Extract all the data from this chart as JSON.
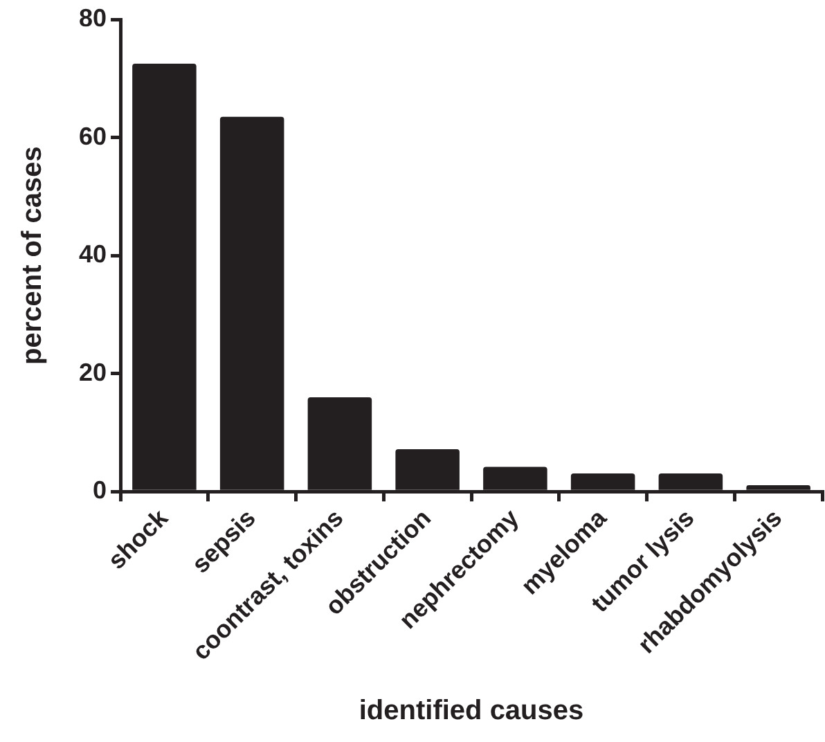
{
  "chart_data": {
    "type": "bar",
    "xlabel": "identified causes",
    "ylabel": "percent of cases",
    "categories": [
      "shock",
      "sepsis",
      "coontrast, toxins",
      "obstruction",
      "nephrectomy",
      "myeloma",
      "tumor lysis",
      "rhabdomyolysis"
    ],
    "values": [
      72.5,
      63.5,
      16,
      7.2,
      4.2,
      3.1,
      3.1,
      1.1
    ],
    "color": "#231f20",
    "ylim": [
      0,
      80
    ],
    "yticks": [
      0,
      20,
      40,
      60,
      80
    ],
    "grid": false,
    "legend": false
  }
}
